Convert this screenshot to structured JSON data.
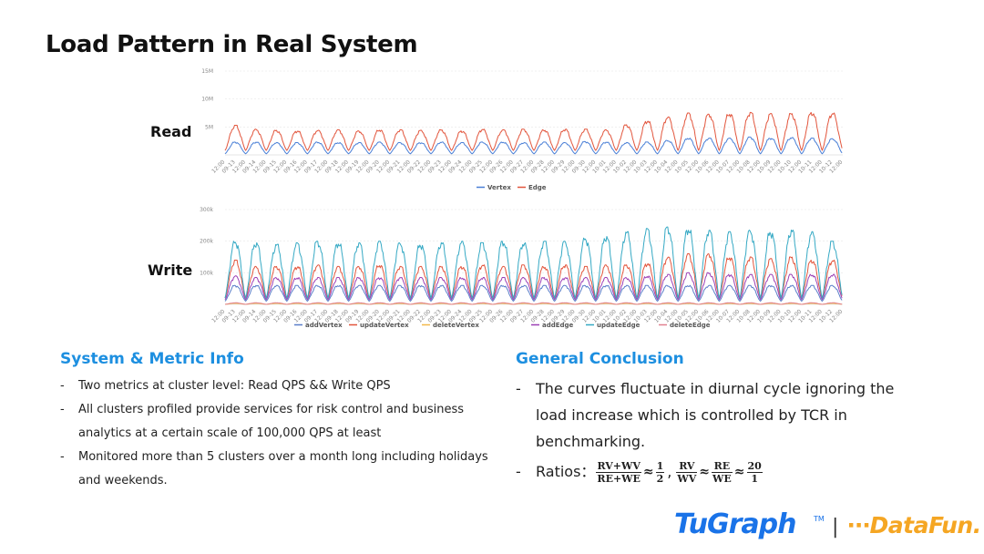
{
  "page": {
    "title": "Load Pattern in Real System"
  },
  "chart_data": [
    {
      "type": "line",
      "row_label": "Read",
      "y_ticks": [
        "15M",
        "10M",
        "5M"
      ],
      "y_tick_values": [
        15,
        10,
        5
      ],
      "ylim": [
        0,
        15
      ],
      "y_unit": "M",
      "x_tick_labels": [
        "12:00",
        "09-13",
        "12:00",
        "09-14",
        "12:00",
        "09-15",
        "12:00",
        "09-16",
        "12:00",
        "09-17",
        "12:00",
        "09-18",
        "12:00",
        "09-19",
        "12:00",
        "09-20",
        "12:00",
        "09-21",
        "12:00",
        "09-22",
        "12:00",
        "09-23",
        "12:00",
        "09-24",
        "12:00",
        "09-25",
        "12:00",
        "09-26",
        "12:00",
        "09-27",
        "12:00",
        "09-28",
        "12:00",
        "09-29",
        "12:00",
        "09-30",
        "12:00",
        "10-01",
        "12:00",
        "10-02",
        "12:00",
        "10-03",
        "12:00",
        "10-04",
        "12:00",
        "10-05",
        "12:00",
        "10-06",
        "12:00",
        "10-07",
        "12:00",
        "10-08",
        "12:00",
        "10-09",
        "12:00",
        "10-10",
        "12:00",
        "10-11",
        "12:00",
        "10-12",
        "12:00"
      ],
      "days": 30,
      "grid": true,
      "legend_position": "bottom",
      "series": [
        {
          "name": "Vertex",
          "color": "#4a7fd6",
          "daily_peak": [
            2.3,
            2.3,
            2.2,
            2.2,
            2.3,
            2.2,
            2.2,
            2.3,
            2.2,
            2.2,
            2.3,
            2.2,
            2.3,
            2.3,
            2.2,
            2.3,
            2.2,
            2.4,
            2.3,
            2.2,
            2.3,
            2.6,
            3.0,
            3.0,
            3.0,
            3.2,
            3.0,
            3.1,
            3.0,
            2.9
          ],
          "daily_trough": [
            0.2,
            0.2,
            0.2,
            0.2,
            0.2,
            0.2,
            0.2,
            0.2,
            0.2,
            0.2,
            0.2,
            0.2,
            0.2,
            0.2,
            0.2,
            0.2,
            0.2,
            0.2,
            0.2,
            0.2,
            0.2,
            0.2,
            0.2,
            0.2,
            0.2,
            0.2,
            0.2,
            0.2,
            0.2,
            0.2
          ]
        },
        {
          "name": "Edge",
          "color": "#e2553c",
          "daily_peak": [
            5.3,
            4.6,
            4.4,
            4.3,
            4.4,
            4.5,
            4.3,
            4.5,
            4.5,
            4.4,
            4.5,
            4.3,
            4.6,
            4.5,
            4.6,
            4.5,
            4.6,
            4.6,
            4.5,
            5.4,
            6.1,
            6.8,
            7.5,
            7.3,
            7.4,
            7.6,
            7.4,
            7.4,
            7.6,
            7.5
          ],
          "daily_trough": [
            0.8,
            0.8,
            0.8,
            0.8,
            0.8,
            0.8,
            0.8,
            0.8,
            0.8,
            0.8,
            0.8,
            0.8,
            0.8,
            0.8,
            0.8,
            0.8,
            0.8,
            0.8,
            0.8,
            0.8,
            0.8,
            0.8,
            0.8,
            0.8,
            0.8,
            0.8,
            0.8,
            0.8,
            0.8,
            0.8
          ]
        }
      ]
    },
    {
      "type": "line",
      "row_label": "Write",
      "y_ticks": [
        "300k",
        "200k",
        "100k"
      ],
      "y_tick_values": [
        300,
        200,
        100
      ],
      "ylim": [
        0,
        300
      ],
      "y_unit": "k",
      "x_tick_labels": [
        "12:00",
        "09-13",
        "12:00",
        "09-14",
        "12:00",
        "09-15",
        "12:00",
        "09-16",
        "12:00",
        "09-17",
        "12:00",
        "09-18",
        "12:00",
        "09-19",
        "12:00",
        "09-20",
        "12:00",
        "09-21",
        "12:00",
        "09-22",
        "12:00",
        "09-23",
        "12:00",
        "09-24",
        "12:00",
        "09-25",
        "12:00",
        "09-26",
        "12:00",
        "09-27",
        "12:00",
        "09-28",
        "12:00",
        "09-29",
        "12:00",
        "09-30",
        "12:00",
        "10-01",
        "12:00",
        "10-02",
        "12:00",
        "10-03",
        "12:00",
        "10-04",
        "12:00",
        "10-05",
        "12:00",
        "10-06",
        "12:00",
        "10-07",
        "12:00",
        "10-08",
        "12:00",
        "10-09",
        "12:00",
        "10-10",
        "12:00",
        "10-11",
        "12:00",
        "10-12",
        "12:00"
      ],
      "days": 30,
      "grid": true,
      "legend_position": "bottom",
      "series": [
        {
          "name": "addVertex",
          "color": "#5a7ec9",
          "daily_peak": [
            60,
            60,
            60,
            60,
            60,
            60,
            60,
            60,
            60,
            60,
            60,
            60,
            60,
            60,
            60,
            60,
            60,
            60,
            60,
            60,
            60,
            60,
            60,
            60,
            60,
            60,
            60,
            60,
            60,
            60
          ],
          "daily_trough": [
            10,
            10,
            10,
            10,
            10,
            10,
            10,
            10,
            10,
            10,
            10,
            10,
            10,
            10,
            10,
            10,
            10,
            10,
            10,
            10,
            10,
            10,
            10,
            10,
            10,
            10,
            10,
            10,
            10,
            10
          ]
        },
        {
          "name": "updateVertex",
          "color": "#e2553c",
          "daily_peak": [
            140,
            120,
            120,
            120,
            125,
            120,
            120,
            125,
            120,
            120,
            120,
            120,
            125,
            120,
            125,
            120,
            125,
            120,
            125,
            125,
            130,
            150,
            160,
            160,
            150,
            150,
            145,
            150,
            140,
            140
          ],
          "daily_trough": [
            20,
            20,
            20,
            20,
            20,
            20,
            20,
            20,
            20,
            20,
            20,
            20,
            20,
            20,
            20,
            20,
            20,
            20,
            20,
            20,
            20,
            20,
            20,
            20,
            20,
            20,
            20,
            20,
            20,
            20
          ]
        },
        {
          "name": "deleteVertex",
          "color": "#f2b84b",
          "daily_peak": [
            3,
            3,
            3,
            3,
            3,
            3,
            3,
            3,
            3,
            3,
            3,
            3,
            3,
            3,
            3,
            3,
            3,
            3,
            3,
            3,
            3,
            3,
            3,
            3,
            3,
            3,
            3,
            3,
            3,
            3
          ],
          "daily_trough": [
            0,
            0,
            0,
            0,
            0,
            0,
            0,
            0,
            0,
            0,
            0,
            0,
            0,
            0,
            0,
            0,
            0,
            0,
            0,
            0,
            0,
            0,
            0,
            0,
            0,
            0,
            0,
            0,
            0,
            0
          ]
        },
        {
          "name": "addEdge",
          "color": "#9b3fb5",
          "daily_peak": [
            90,
            85,
            85,
            85,
            85,
            85,
            85,
            85,
            85,
            85,
            85,
            85,
            85,
            85,
            85,
            85,
            85,
            85,
            85,
            85,
            90,
            95,
            100,
            100,
            95,
            95,
            95,
            95,
            95,
            95
          ],
          "daily_trough": [
            15,
            15,
            15,
            15,
            15,
            15,
            15,
            15,
            15,
            15,
            15,
            15,
            15,
            15,
            15,
            15,
            15,
            15,
            15,
            15,
            15,
            15,
            15,
            15,
            15,
            15,
            15,
            15,
            15,
            15
          ]
        },
        {
          "name": "updateEdge",
          "color": "#35a9c4",
          "daily_peak": [
            200,
            195,
            190,
            195,
            200,
            195,
            195,
            200,
            195,
            190,
            195,
            200,
            195,
            200,
            195,
            200,
            200,
            210,
            215,
            230,
            240,
            245,
            240,
            235,
            230,
            235,
            230,
            235,
            230,
            200
          ],
          "daily_trough": [
            20,
            20,
            20,
            20,
            20,
            20,
            20,
            20,
            20,
            20,
            20,
            20,
            20,
            20,
            20,
            20,
            20,
            20,
            20,
            20,
            20,
            20,
            20,
            20,
            20,
            20,
            20,
            20,
            20,
            20
          ]
        },
        {
          "name": "deleteEdge",
          "color": "#e08090",
          "daily_peak": [
            5,
            5,
            5,
            5,
            5,
            5,
            5,
            5,
            5,
            5,
            5,
            5,
            5,
            5,
            5,
            5,
            5,
            5,
            5,
            5,
            5,
            5,
            5,
            5,
            5,
            5,
            5,
            5,
            5,
            5
          ],
          "daily_trough": [
            0,
            0,
            0,
            0,
            0,
            0,
            0,
            0,
            0,
            0,
            0,
            0,
            0,
            0,
            0,
            0,
            0,
            0,
            0,
            0,
            0,
            0,
            0,
            0,
            0,
            0,
            0,
            0,
            0,
            0
          ]
        }
      ]
    }
  ],
  "left_section": {
    "heading": "System & Metric Info",
    "bullets": [
      "Two metrics at cluster level: Read QPS && Write QPS",
      "All clusters profiled provide services for risk control and business analytics at a certain scale of 100,000 QPS at least",
      "Monitored more than 5 clusters over a month long including holidays and weekends."
    ]
  },
  "right_section": {
    "heading": "General Conclusion",
    "bullet1": "The curves fluctuate in diurnal cycle ignoring the load increase which is controlled by TCR in benchmarking.",
    "ratios_label": "Ratios：",
    "frac1_num": "RV+WV",
    "frac1_den": "RE+WE",
    "approx": "≈",
    "frac2_num": "1",
    "frac2_den": "2",
    "comma": ",",
    "frac3_num": "RV",
    "frac3_den": "WV",
    "frac4_num": "RE",
    "frac4_den": "WE",
    "frac5_num": "20",
    "frac5_den": "1"
  },
  "dash": "-",
  "logos": {
    "tugraph": "TuGraph",
    "tm": "TM",
    "separator": "|",
    "datafun": "⋯DataFun."
  },
  "colors": {
    "heading": "#1d8fe0",
    "tugraph": "#1a73e8",
    "datafun": "#f5a623"
  }
}
